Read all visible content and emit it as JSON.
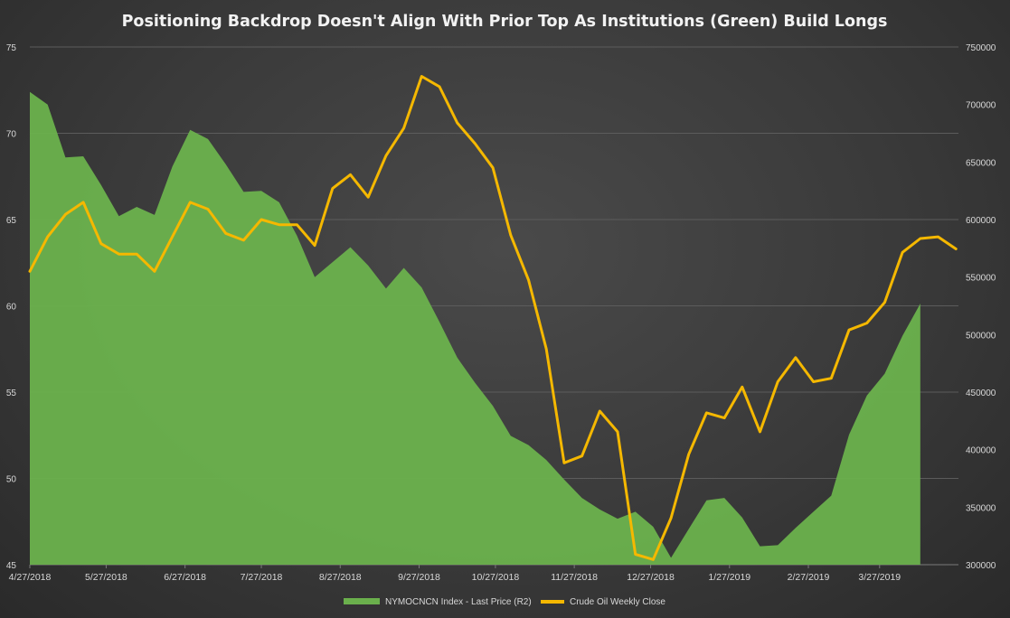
{
  "chart_data": {
    "type": "area-line-combo",
    "title": "Positioning Backdrop Doesn't Align With Prior Top As Institutions (Green) Build Longs",
    "x_tick_labels": [
      "4/27/2018",
      "5/27/2018",
      "6/27/2018",
      "7/27/2018",
      "8/27/2018",
      "9/27/2018",
      "10/27/2018",
      "11/27/2018",
      "12/27/2018",
      "1/27/2019",
      "2/27/2019",
      "3/27/2019"
    ],
    "y_left": {
      "min": 45,
      "max": 75,
      "ticks": [
        "45",
        "50",
        "55",
        "60",
        "65",
        "70",
        "75"
      ]
    },
    "y_right": {
      "min": 300000,
      "max": 750000,
      "ticks": [
        "300000",
        "350000",
        "400000",
        "450000",
        "500000",
        "550000",
        "600000",
        "650000",
        "700000",
        "750000"
      ]
    },
    "series": [
      {
        "name": "NYMOCNCN Index - Last Price (R2)",
        "type": "area",
        "axis": "right",
        "color": "#6ab04c",
        "points": [
          [
            "2018-04-27",
            711000
          ],
          [
            "2018-05-04",
            700000
          ],
          [
            "2018-05-11",
            654000
          ],
          [
            "2018-05-18",
            655000
          ],
          [
            "2018-05-25",
            630000
          ],
          [
            "2018-06-01",
            603000
          ],
          [
            "2018-06-08",
            611000
          ],
          [
            "2018-06-15",
            604000
          ],
          [
            "2018-06-22",
            646000
          ],
          [
            "2018-06-29",
            678000
          ],
          [
            "2018-07-06",
            670000
          ],
          [
            "2018-07-13",
            648000
          ],
          [
            "2018-07-20",
            624000
          ],
          [
            "2018-07-27",
            625000
          ],
          [
            "2018-08-03",
            615000
          ],
          [
            "2018-08-10",
            586000
          ],
          [
            "2018-08-17",
            550000
          ],
          [
            "2018-08-24",
            563000
          ],
          [
            "2018-08-31",
            576000
          ],
          [
            "2018-09-07",
            560000
          ],
          [
            "2018-09-14",
            540000
          ],
          [
            "2018-09-21",
            558000
          ],
          [
            "2018-09-28",
            541000
          ],
          [
            "2018-10-05",
            511000
          ],
          [
            "2018-10-12",
            480000
          ],
          [
            "2018-10-19",
            458000
          ],
          [
            "2018-10-26",
            438000
          ],
          [
            "2018-11-02",
            412000
          ],
          [
            "2018-11-09",
            404000
          ],
          [
            "2018-11-16",
            391000
          ],
          [
            "2018-11-23",
            374000
          ],
          [
            "2018-11-30",
            358000
          ],
          [
            "2018-12-07",
            348000
          ],
          [
            "2018-12-14",
            340000
          ],
          [
            "2018-12-21",
            346000
          ],
          [
            "2018-12-28",
            333000
          ],
          [
            "2019-01-04",
            306000
          ],
          [
            "2019-01-11",
            331000
          ],
          [
            "2019-01-18",
            356000
          ],
          [
            "2019-01-25",
            358000
          ],
          [
            "2019-02-01",
            341000
          ],
          [
            "2019-02-08",
            316000
          ],
          [
            "2019-02-15",
            317000
          ],
          [
            "2019-02-22",
            332000
          ],
          [
            "2019-03-01",
            346000
          ],
          [
            "2019-03-08",
            360000
          ],
          [
            "2019-03-15",
            413000
          ],
          [
            "2019-03-22",
            447000
          ],
          [
            "2019-03-29",
            466000
          ],
          [
            "2019-04-05",
            499000
          ],
          [
            "2019-04-12",
            527000
          ]
        ]
      },
      {
        "name": "Crude Oil Weekly Close",
        "type": "line",
        "axis": "left",
        "color": "#f5b800",
        "points": [
          [
            "2018-04-27",
            62.0
          ],
          [
            "2018-05-04",
            64.0
          ],
          [
            "2018-05-11",
            65.3
          ],
          [
            "2018-05-18",
            66.0
          ],
          [
            "2018-05-25",
            63.6
          ],
          [
            "2018-06-01",
            63.0
          ],
          [
            "2018-06-08",
            63.0
          ],
          [
            "2018-06-15",
            62.0
          ],
          [
            "2018-06-22",
            64.0
          ],
          [
            "2018-06-29",
            66.0
          ],
          [
            "2018-07-06",
            65.6
          ],
          [
            "2018-07-13",
            64.2
          ],
          [
            "2018-07-20",
            63.8
          ],
          [
            "2018-07-27",
            65.0
          ],
          [
            "2018-08-03",
            64.7
          ],
          [
            "2018-08-10",
            64.7
          ],
          [
            "2018-08-17",
            63.5
          ],
          [
            "2018-08-24",
            66.8
          ],
          [
            "2018-08-31",
            67.6
          ],
          [
            "2018-09-07",
            66.3
          ],
          [
            "2018-09-14",
            68.7
          ],
          [
            "2018-09-21",
            70.3
          ],
          [
            "2018-09-28",
            73.3
          ],
          [
            "2018-10-05",
            72.7
          ],
          [
            "2018-10-12",
            70.6
          ],
          [
            "2018-10-19",
            69.4
          ],
          [
            "2018-10-26",
            68.0
          ],
          [
            "2018-11-02",
            64.1
          ],
          [
            "2018-11-09",
            61.5
          ],
          [
            "2018-11-16",
            57.5
          ],
          [
            "2018-11-23",
            50.9
          ],
          [
            "2018-11-30",
            51.3
          ],
          [
            "2018-12-07",
            53.9
          ],
          [
            "2018-12-14",
            52.7
          ],
          [
            "2018-12-21",
            45.6
          ],
          [
            "2018-12-28",
            45.3
          ],
          [
            "2019-01-04",
            47.7
          ],
          [
            "2019-01-11",
            51.4
          ],
          [
            "2019-01-18",
            53.8
          ],
          [
            "2019-01-25",
            53.5
          ],
          [
            "2019-02-01",
            55.3
          ],
          [
            "2019-02-08",
            52.7
          ],
          [
            "2019-02-15",
            55.6
          ],
          [
            "2019-02-22",
            57.0
          ],
          [
            "2019-03-01",
            55.6
          ],
          [
            "2019-03-08",
            55.8
          ],
          [
            "2019-03-15",
            58.6
          ],
          [
            "2019-03-22",
            59.0
          ],
          [
            "2019-03-29",
            60.2
          ],
          [
            "2019-04-05",
            63.1
          ],
          [
            "2019-04-12",
            63.9
          ],
          [
            "2019-04-19",
            64.0
          ],
          [
            "2019-04-26",
            63.3
          ]
        ]
      }
    ],
    "legend": {
      "position": "bottom"
    },
    "grid": true
  }
}
